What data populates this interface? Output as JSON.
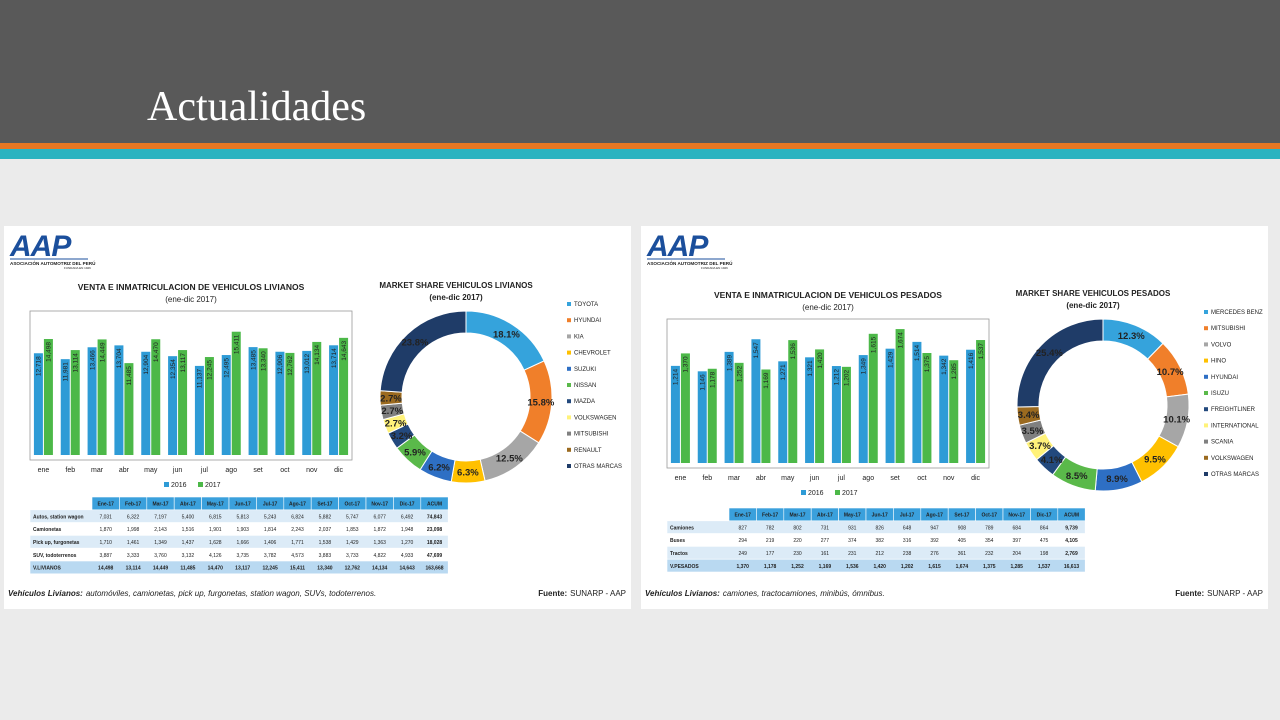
{
  "title": "Actualidades",
  "panels": [
    {
      "logo": "AAP",
      "logo_caption": "ASOCIACIÓN AUTOMOTRIZ DEL PERÚ",
      "logo_sub": "FUNDADA EN 1926",
      "footnote_label": "Vehículos Livianos:",
      "footnote": "automóviles, camionetas, pick up, furgonetas, station wagon, SUVs, todoterrenos.",
      "source_label": "Fuente:",
      "source": "SUNARP - AAP",
      "table": {
        "header": [
          "Ene-17",
          "Feb-17",
          "Mar-17",
          "Abr-17",
          "May-17",
          "Jun-17",
          "Jul-17",
          "Ago-17",
          "Set-17",
          "Oct-17",
          "Nov-17",
          "Dic-17",
          "ACUM"
        ],
        "rows": [
          [
            "Autos, station wagon",
            "7,031",
            "6,322",
            "7,197",
            "5,400",
            "6,815",
            "5,813",
            "5,243",
            "6,824",
            "5,882",
            "5,747",
            "6,077",
            "6,492",
            "74,843"
          ],
          [
            "Camionetas",
            "1,870",
            "1,998",
            "2,143",
            "1,516",
            "1,901",
            "1,903",
            "1,814",
            "2,243",
            "2,037",
            "1,853",
            "1,872",
            "1,948",
            "23,098"
          ],
          [
            "Pick up, furgonetas",
            "1,710",
            "1,461",
            "1,349",
            "1,437",
            "1,628",
            "1,666",
            "1,406",
            "1,771",
            "1,538",
            "1,429",
            "1,363",
            "1,270",
            "18,028"
          ],
          [
            "SUV, todoterrenos",
            "3,887",
            "3,333",
            "3,760",
            "3,132",
            "4,126",
            "3,735",
            "3,782",
            "4,573",
            "3,883",
            "3,733",
            "4,822",
            "4,933",
            "47,699"
          ],
          [
            "V.LIVIANOS",
            "14,498",
            "13,114",
            "14,449",
            "11,485",
            "14,470",
            "13,117",
            "12,245",
            "15,411",
            "13,340",
            "12,762",
            "14,134",
            "14,643",
            "163,668"
          ]
        ]
      }
    },
    {
      "logo": "AAP",
      "logo_caption": "ASOCIACIÓN AUTOMOTRIZ DEL PERÚ",
      "logo_sub": "FUNDADA EN 1926",
      "footnote_label": "Vehículos Livianos:",
      "footnote": "camiones, tractocamiones, minibús, ómnibus.",
      "source_label": "Fuente:",
      "source": "SUNARP - AAP",
      "table": {
        "header": [
          "Ene-17",
          "Feb-17",
          "Mar-17",
          "Abr-17",
          "May-17",
          "Jun-17",
          "Jul-17",
          "Ago-17",
          "Set-17",
          "Oct-17",
          "Nov-17",
          "Dic-17",
          "ACUM"
        ],
        "rows": [
          [
            "Camiones",
            "827",
            "782",
            "802",
            "731",
            "931",
            "826",
            "648",
            "947",
            "908",
            "789",
            "684",
            "864",
            "9,739"
          ],
          [
            "Buses",
            "294",
            "219",
            "220",
            "277",
            "374",
            "382",
            "316",
            "392",
            "405",
            "354",
            "397",
            "475",
            "4,105"
          ],
          [
            "Tractos",
            "249",
            "177",
            "230",
            "161",
            "231",
            "212",
            "238",
            "276",
            "361",
            "232",
            "204",
            "198",
            "2,769"
          ],
          [
            "V.PESADOS",
            "1,370",
            "1,178",
            "1,252",
            "1,169",
            "1,536",
            "1,420",
            "1,202",
            "1,615",
            "1,674",
            "1,375",
            "1,285",
            "1,537",
            "16,613"
          ]
        ]
      }
    }
  ],
  "chart_data": [
    {
      "type": "bar",
      "title": "VENTA E INMATRICULACION DE VEHICULOS LIVIANOS",
      "subtitle": "(ene-dic 2017)",
      "categories": [
        "ene",
        "feb",
        "mar",
        "abr",
        "may",
        "jun",
        "jul",
        "ago",
        "set",
        "oct",
        "nov",
        "dic"
      ],
      "ylim": [
        0,
        18000
      ],
      "series": [
        {
          "name": "2016",
          "color": "#2e9bd6",
          "values": [
            12718,
            11981,
            13466,
            13704,
            12904,
            12354,
            11137,
            12495,
            13485,
            12906,
            13012,
            13714
          ],
          "value_labels": [
            "12,718",
            "11,981",
            "13,466",
            "13,704",
            "12,904",
            "12,354",
            "11,137",
            "12,495",
            "13,485",
            "12,906",
            "13,012",
            "13,714"
          ]
        },
        {
          "name": "2017",
          "color": "#4cb848",
          "values": [
            14498,
            13114,
            14449,
            11485,
            14470,
            13117,
            12245,
            15411,
            13340,
            12762,
            14134,
            14643
          ],
          "value_labels": [
            "14,498",
            "13,114",
            "14,449",
            "11,485",
            "14,470",
            "13,117",
            "12,245",
            "15,411",
            "13,340",
            "12,762",
            "14,134",
            "14,643"
          ]
        }
      ]
    },
    {
      "type": "pie",
      "title": "MARKET SHARE VEHICULOS LIVIANOS",
      "subtitle": "(ene-dic 2017)",
      "categories": [
        "TOYOTA",
        "HYUNDAI",
        "KIA",
        "CHEVROLET",
        "SUZUKI",
        "NISSAN",
        "MAZDA",
        "VOLKSWAGEN",
        "MITSUBISHI",
        "RENAULT",
        "OTRAS MARCAS"
      ],
      "values": [
        18.1,
        15.8,
        12.5,
        6.3,
        6.2,
        5.9,
        3.2,
        2.7,
        2.7,
        2.7,
        23.8
      ],
      "value_labels": [
        "18.1%",
        "15.8%",
        "12.5%",
        "6.3%",
        "6.2%",
        "5.9%",
        "3.2%",
        "2.7%",
        "2.7%",
        "2.7%",
        "23.8%"
      ],
      "colors": [
        "#35a3dc",
        "#f07f2a",
        "#a6a6a6",
        "#ffc000",
        "#2e6fc4",
        "#5ab94a",
        "#23497d",
        "#fff27a",
        "#808080",
        "#9b6a1f",
        "#1f3c68"
      ]
    },
    {
      "type": "bar",
      "title": "VENTA E INMATRICULACION DE VEHICULOS PESADOS",
      "subtitle": "(ene-dic 2017)",
      "categories": [
        "ene",
        "feb",
        "mar",
        "abr",
        "may",
        "jun",
        "jul",
        "ago",
        "set",
        "oct",
        "nov",
        "dic"
      ],
      "ylim": [
        0,
        1800
      ],
      "series": [
        {
          "name": "2016",
          "color": "#2e9bd6",
          "values": [
            1214,
            1146,
            1389,
            1547,
            1271,
            1321,
            1212,
            1349,
            1429,
            1514,
            1342,
            1416
          ],
          "value_labels": [
            "1,214",
            "1,146",
            "1,389",
            "1,547",
            "1,271",
            "1,321",
            "1,212",
            "1,349",
            "1,429",
            "1,514",
            "1,342",
            "1,416"
          ]
        },
        {
          "name": "2017",
          "color": "#4cb848",
          "values": [
            1370,
            1178,
            1252,
            1169,
            1536,
            1420,
            1202,
            1615,
            1674,
            1375,
            1285,
            1537
          ],
          "value_labels": [
            "1,370",
            "1,178",
            "1,252",
            "1,169",
            "1,536",
            "1,420",
            "1,202",
            "1,615",
            "1,674",
            "1,375",
            "1,285",
            "1,537"
          ]
        }
      ]
    },
    {
      "type": "pie",
      "title": "MARKET SHARE VEHICULOS PESADOS",
      "subtitle": "(ene-dic 2017)",
      "categories": [
        "MERCEDES BENZ",
        "MITSUBISHI",
        "VOLVO",
        "HINO",
        "HYUNDAI",
        "ISUZU",
        "FREIGHTLINER",
        "INTERNATIONAL",
        "SCANIA",
        "VOLKSWAGEN",
        "OTRAS MARCAS"
      ],
      "values": [
        12.3,
        10.7,
        10.1,
        9.5,
        8.9,
        8.5,
        4.1,
        3.7,
        3.5,
        3.4,
        25.4
      ],
      "value_labels": [
        "12.3%",
        "10.7%",
        "10.1%",
        "9.5%",
        "8.9%",
        "8.5%",
        "4.1%",
        "3.7%",
        "3.5%",
        "3.4%",
        "25.4%"
      ],
      "colors": [
        "#35a3dc",
        "#f07f2a",
        "#a6a6a6",
        "#ffc000",
        "#2e6fc4",
        "#5ab94a",
        "#23497d",
        "#fff27a",
        "#808080",
        "#9b6a1f",
        "#1f3c68"
      ]
    }
  ]
}
